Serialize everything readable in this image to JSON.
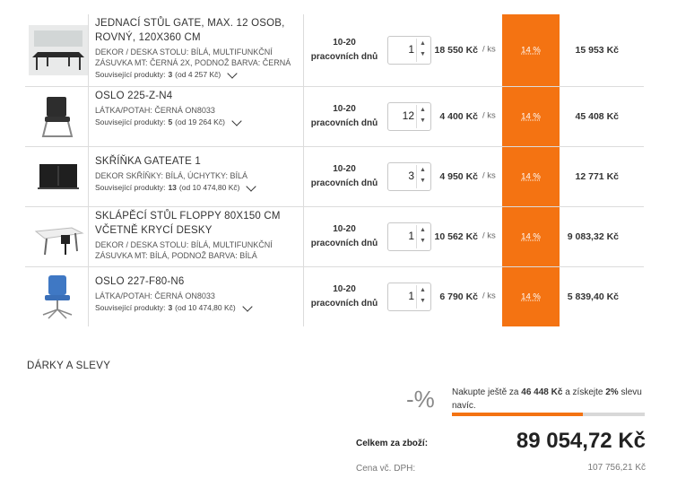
{
  "items": [
    {
      "name": "JEDNACÍ STŮL GATE, MAX. 12 OSOB, ROVNÝ, 120X360 CM",
      "desc": "DEKOR / DESKA STOLU: BÍLÁ, MULTIFUNKČNÍ ZÁSUVKA MT: ČERNÁ 2X, PODNOŽ BARVA: ČERNÁ",
      "related_prefix": "Související produkty:",
      "related_count": "3",
      "related_from": "(od 4 257 Kč)",
      "delivery": "10-20 pracovních dnů",
      "qty": "1",
      "price": "18 550 Kč",
      "unit": "/ ks",
      "discount": "14 %",
      "total": "15 953 Kč",
      "icon": "conference-table-icon"
    },
    {
      "name": "OSLO 225-Z-N4",
      "desc": "LÁTKA/POTAH: ČERNÁ ON8033",
      "related_prefix": "Související produkty:",
      "related_count": "5",
      "related_from": "(od 19 264 Kč)",
      "delivery": "10-20 pracovních dnů",
      "qty": "12",
      "price": "4 400 Kč",
      "unit": "/ ks",
      "discount": "14 %",
      "total": "45 408 Kč",
      "icon": "chair-icon"
    },
    {
      "name": "SKŘÍŇKA GATEATE 1",
      "desc": "DEKOR SKŘÍŇKY: BÍLÁ, ÚCHYTKY: BÍLÁ",
      "related_prefix": "Související produkty:",
      "related_count": "13",
      "related_from": "(od 10 474,80 Kč)",
      "delivery": "10-20 pracovních dnů",
      "qty": "3",
      "price": "4 950 Kč",
      "unit": "/ ks",
      "discount": "14 %",
      "total": "12 771 Kč",
      "icon": "cabinet-icon"
    },
    {
      "name": "SKLÁPĚCÍ STŮL FLOPPY 80X150 CM VČETNĚ KRYCÍ DESKY",
      "desc": "DEKOR / DESKA STOLU: BÍLÁ, MULTIFUNKČNÍ ZÁSUVKA MT: BÍLÁ, PODNOŽ BARVA: BÍLÁ",
      "related_prefix": "",
      "related_count": "",
      "related_from": "",
      "delivery": "10-20 pracovních dnů",
      "qty": "1",
      "price": "10 562 Kč",
      "unit": "/ ks",
      "discount": "14 %",
      "total": "9 083,32 Kč",
      "icon": "folding-table-icon"
    },
    {
      "name": "OSLO 227-F80-N6",
      "desc": "LÁTKA/POTAH: ČERNÁ ON8033",
      "related_prefix": "Související produkty:",
      "related_count": "3",
      "related_from": "(od 10 474,80 Kč)",
      "delivery": "10-20 pracovních dnů",
      "qty": "1",
      "price": "6 790 Kč",
      "unit": "/ ks",
      "discount": "14 %",
      "total": "5 839,40 Kč",
      "icon": "office-chair-icon"
    }
  ],
  "gifts": {
    "title": "DÁRKY A SLEVY",
    "percent_symbol": "-%",
    "promo_pre": "Nakupte ještě za",
    "promo_amount": "46 448 Kč",
    "promo_mid": "a získejte",
    "promo_pct": "2%",
    "promo_post": "slevu navíc.",
    "progress": 0.68
  },
  "summary": {
    "total_label": "Celkem za zboží:",
    "total_value": "89 054,72 Kč",
    "vat_label": "Cena vč. DPH:",
    "vat_value": "107 756,21 Kč"
  },
  "colors": {
    "accent": "#f47312"
  }
}
